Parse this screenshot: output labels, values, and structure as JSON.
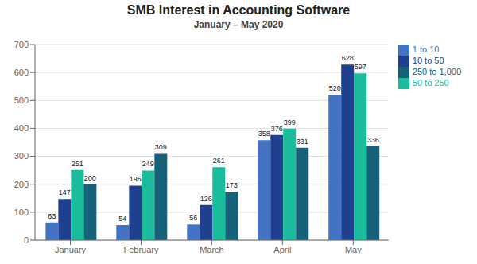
{
  "chart_data": {
    "type": "bar",
    "title": "SMB Interest in Accounting Software",
    "subtitle": "January – May 2020",
    "categories": [
      "January",
      "February",
      "March",
      "April",
      "May"
    ],
    "series": [
      {
        "name": "1 to 10",
        "color": "#4472C4",
        "values": [
          63,
          54,
          56,
          358,
          520
        ]
      },
      {
        "name": "10 to 50",
        "color": "#1F3F8F",
        "values": [
          147,
          195,
          126,
          376,
          628
        ]
      },
      {
        "name": "50 to 250",
        "color": "#1ABC9C",
        "values": [
          251,
          249,
          261,
          399,
          597
        ]
      },
      {
        "name": "250 to 1,000",
        "color": "#17607A",
        "values": [
          200,
          309,
          173,
          331,
          336
        ]
      }
    ],
    "ylim": [
      0,
      700
    ],
    "yticks": [
      0,
      100,
      200,
      300,
      400,
      500,
      600,
      700
    ],
    "grid": true,
    "legend": "upper right",
    "data_labels": true
  }
}
